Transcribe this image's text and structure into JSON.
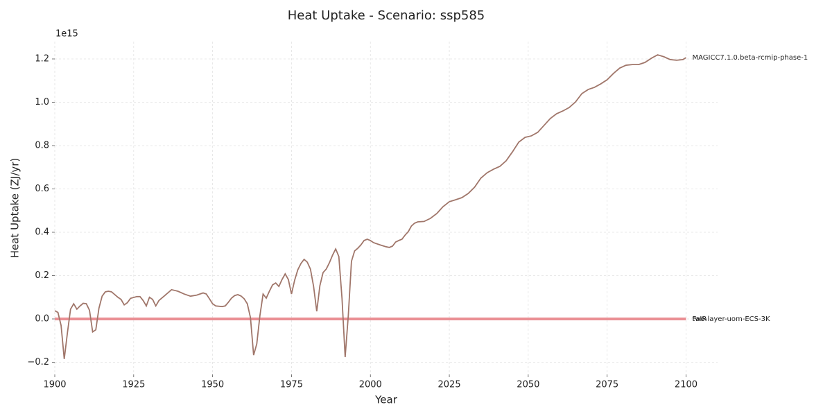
{
  "chart_data": {
    "type": "line",
    "title": "Heat Uptake - Scenario: ssp585",
    "x_label": "Year",
    "y_label": "Heat Uptake (ZJ/yr)",
    "y_offset_label": "1e15",
    "xlim": [
      1900,
      2110
    ],
    "ylim": [
      -0.256,
      1.28
    ],
    "xticks": [
      1900,
      1925,
      1950,
      1975,
      2000,
      2025,
      2050,
      2075,
      2100
    ],
    "yticks": [
      {
        "value": -0.2,
        "label": "−0.2"
      },
      {
        "value": 0,
        "label": "0.0"
      },
      0.2,
      0.4,
      0.6,
      0.8,
      {
        "value": 1,
        "label": "1.0"
      },
      1.2
    ],
    "grid": true,
    "series": [
      {
        "name": "two-layer-uom-ECS-3K",
        "color": "#d9a3ab",
        "x": [
          1900,
          2100
        ],
        "values": [
          0,
          0
        ]
      },
      {
        "name": "FaIR",
        "color": "#ec8a8d",
        "x": [
          1900,
          2100
        ],
        "values": [
          0,
          0
        ]
      },
      {
        "name": "MAGICC7.1.0.beta-rcmip-phase-1",
        "color": "#a0766a",
        "x": [
          1900,
          1901,
          1902,
          1903,
          1904,
          1905,
          1906,
          1907,
          1908,
          1909,
          1910,
          1911,
          1912,
          1913,
          1914,
          1915,
          1916,
          1917,
          1918,
          1920,
          1921,
          1922,
          1923,
          1924,
          1926,
          1927,
          1928,
          1929,
          1930,
          1931,
          1932,
          1933,
          1935,
          1937,
          1939,
          1941,
          1943,
          1945,
          1947,
          1948,
          1949,
          1950,
          1951,
          1953,
          1954,
          1955,
          1956,
          1957,
          1958,
          1959,
          1960,
          1961,
          1962,
          1963,
          1964,
          1965,
          1966,
          1967,
          1968,
          1969,
          1970,
          1971,
          1972,
          1973,
          1974,
          1975,
          1976,
          1977,
          1978,
          1979,
          1980,
          1981,
          1982,
          1983,
          1984,
          1985,
          1986,
          1987,
          1988,
          1989,
          1990,
          1991,
          1992,
          1993,
          1994,
          1995,
          1996,
          1997,
          1998,
          1999,
          2000,
          2001,
          2003,
          2005,
          2006,
          2007,
          2008,
          2009,
          2010,
          2011,
          2012,
          2013,
          2014,
          2015,
          2017,
          2019,
          2021,
          2023,
          2025,
          2027,
          2029,
          2031,
          2033,
          2035,
          2037,
          2039,
          2041,
          2043,
          2045,
          2047,
          2049,
          2051,
          2053,
          2055,
          2057,
          2059,
          2061,
          2063,
          2065,
          2067,
          2069,
          2071,
          2073,
          2075,
          2077,
          2079,
          2081,
          2083,
          2085,
          2087,
          2089,
          2091,
          2093,
          2095,
          2097,
          2099,
          2100
        ],
        "values": [
          0.038,
          0.03,
          -0.03,
          -0.185,
          -0.065,
          0.045,
          0.07,
          0.045,
          0.06,
          0.072,
          0.07,
          0.04,
          -0.06,
          -0.05,
          0.05,
          0.105,
          0.125,
          0.128,
          0.125,
          0.1,
          0.09,
          0.065,
          0.075,
          0.095,
          0.103,
          0.103,
          0.085,
          0.06,
          0.1,
          0.09,
          0.06,
          0.085,
          0.11,
          0.135,
          0.128,
          0.115,
          0.105,
          0.11,
          0.12,
          0.115,
          0.093,
          0.07,
          0.06,
          0.057,
          0.06,
          0.077,
          0.096,
          0.108,
          0.112,
          0.106,
          0.093,
          0.07,
          0.006,
          -0.167,
          -0.115,
          0.016,
          0.115,
          0.096,
          0.128,
          0.157,
          0.166,
          0.15,
          0.182,
          0.208,
          0.182,
          0.115,
          0.179,
          0.227,
          0.256,
          0.275,
          0.262,
          0.23,
          0.15,
          0.035,
          0.154,
          0.214,
          0.23,
          0.259,
          0.294,
          0.323,
          0.288,
          0.096,
          -0.176,
          0.016,
          0.266,
          0.314,
          0.326,
          0.342,
          0.362,
          0.368,
          0.362,
          0.352,
          0.342,
          0.333,
          0.33,
          0.336,
          0.355,
          0.362,
          0.368,
          0.387,
          0.403,
          0.429,
          0.442,
          0.448,
          0.45,
          0.464,
          0.486,
          0.518,
          0.541,
          0.55,
          0.56,
          0.579,
          0.608,
          0.65,
          0.675,
          0.691,
          0.704,
          0.73,
          0.771,
          0.816,
          0.838,
          0.845,
          0.861,
          0.893,
          0.925,
          0.947,
          0.96,
          0.976,
          1.002,
          1.04,
          1.059,
          1.069,
          1.085,
          1.104,
          1.133,
          1.158,
          1.171,
          1.174,
          1.174,
          1.184,
          1.203,
          1.219,
          1.21,
          1.197,
          1.194,
          1.197,
          1.206
        ]
      }
    ]
  }
}
